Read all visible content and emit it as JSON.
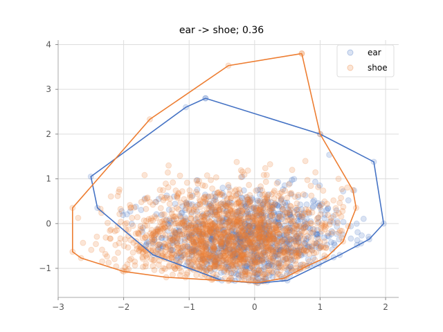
{
  "chart_data": {
    "type": "scatter",
    "title": "ear -> shoe; 0.36",
    "xlabel": "",
    "ylabel": "",
    "xlim": [
      -3.0,
      2.2
    ],
    "ylim": [
      -1.65,
      4.1
    ],
    "xticks": [
      -3,
      -2,
      -1,
      0,
      1,
      2
    ],
    "yticks": [
      -1,
      0,
      1,
      2,
      3,
      4
    ],
    "grid": true,
    "legend_position": "top-right",
    "series": [
      {
        "name": "ear",
        "color": "#4472c4",
        "marker": "circle",
        "alpha": 0.2,
        "cluster": {
          "n": 900,
          "center": [
            -0.1,
            -0.35
          ],
          "spread": [
            0.75,
            0.55
          ]
        },
        "hull": [
          [
            -0.75,
            2.8
          ],
          [
            -1.05,
            2.6
          ],
          [
            -2.5,
            1.05
          ],
          [
            -2.4,
            0.35
          ],
          [
            -1.55,
            -0.7
          ],
          [
            -0.5,
            -1.27
          ],
          [
            0.05,
            -1.33
          ],
          [
            0.5,
            -1.27
          ],
          [
            1.3,
            -0.7
          ],
          [
            1.75,
            -0.35
          ],
          [
            1.97,
            0.0
          ],
          [
            1.82,
            1.38
          ],
          [
            1.0,
            2.0
          ],
          [
            -0.75,
            2.8
          ]
        ]
      },
      {
        "name": "shoe",
        "color": "#ed7d31",
        "marker": "circle",
        "alpha": 0.2,
        "cluster": {
          "n": 1600,
          "center": [
            -0.35,
            -0.35
          ],
          "spread": [
            0.85,
            0.6
          ]
        },
        "hull": [
          [
            0.72,
            3.8
          ],
          [
            -0.4,
            3.53
          ],
          [
            -1.6,
            2.33
          ],
          [
            -2.78,
            0.35
          ],
          [
            -2.78,
            -0.63
          ],
          [
            -2.65,
            -0.77
          ],
          [
            -2.0,
            -1.07
          ],
          [
            -1.35,
            -1.2
          ],
          [
            -0.4,
            -1.28
          ],
          [
            0.05,
            -1.32
          ],
          [
            0.45,
            -1.22
          ],
          [
            0.8,
            -0.95
          ],
          [
            1.1,
            -0.75
          ],
          [
            1.35,
            -0.4
          ],
          [
            1.55,
            0.35
          ],
          [
            1.5,
            0.75
          ],
          [
            1.0,
            2.0
          ],
          [
            0.72,
            3.8
          ]
        ]
      }
    ]
  }
}
